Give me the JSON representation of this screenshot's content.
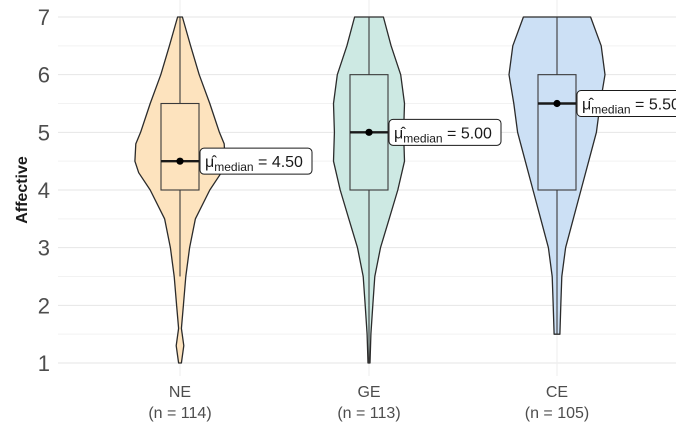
{
  "chart_data": {
    "type": "violin",
    "title": "",
    "xlabel": "",
    "ylabel": "Affective",
    "ylim": [
      1,
      7
    ],
    "yticks": [
      1,
      2,
      3,
      4,
      5,
      6,
      7
    ],
    "grid": true,
    "legend": "none",
    "groups": [
      {
        "name": "NE",
        "n_label": "(n = 114)",
        "fill": "#FDE3BE",
        "median": 4.5,
        "q1": 4.0,
        "q3": 5.5,
        "whisker_low": 2.5,
        "whisker_high": 7.0,
        "annotation": {
          "symbol": "μ̂",
          "subscript": "median",
          "value": "4.50"
        },
        "density": [
          [
            1.0,
            0.03
          ],
          [
            1.3,
            0.08
          ],
          [
            1.6,
            0.03
          ],
          [
            2.0,
            0.07
          ],
          [
            2.5,
            0.12
          ],
          [
            3.0,
            0.2
          ],
          [
            3.5,
            0.32
          ],
          [
            4.0,
            0.62
          ],
          [
            4.3,
            0.86
          ],
          [
            4.5,
            0.94
          ],
          [
            4.8,
            0.92
          ],
          [
            5.0,
            0.82
          ],
          [
            5.5,
            0.62
          ],
          [
            6.0,
            0.4
          ],
          [
            6.5,
            0.22
          ],
          [
            7.0,
            0.05
          ]
        ]
      },
      {
        "name": "GE",
        "n_label": "(n = 113)",
        "fill": "#CDE9E3",
        "median": 5.0,
        "q1": 4.0,
        "q3": 6.0,
        "whisker_low": 1.0,
        "whisker_high": 7.0,
        "annotation": {
          "symbol": "μ̂",
          "subscript": "median",
          "value": "5.00"
        },
        "density": [
          [
            1.0,
            0.02
          ],
          [
            1.5,
            0.04
          ],
          [
            2.0,
            0.08
          ],
          [
            2.5,
            0.12
          ],
          [
            3.0,
            0.24
          ],
          [
            3.5,
            0.42
          ],
          [
            4.0,
            0.6
          ],
          [
            4.5,
            0.74
          ],
          [
            5.0,
            0.72
          ],
          [
            5.5,
            0.74
          ],
          [
            6.0,
            0.66
          ],
          [
            6.5,
            0.46
          ],
          [
            7.0,
            0.3
          ]
        ]
      },
      {
        "name": "CE",
        "n_label": "(n = 105)",
        "fill": "#CCE0F5",
        "median": 5.5,
        "q1": 4.0,
        "q3": 6.0,
        "whisker_low": 1.5,
        "whisker_high": 7.0,
        "annotation": {
          "symbol": "μ̂",
          "subscript": "median",
          "value": "5.50"
        },
        "density": [
          [
            1.5,
            0.06
          ],
          [
            2.0,
            0.08
          ],
          [
            2.5,
            0.1
          ],
          [
            3.0,
            0.18
          ],
          [
            3.5,
            0.34
          ],
          [
            4.0,
            0.5
          ],
          [
            4.5,
            0.66
          ],
          [
            5.0,
            0.82
          ],
          [
            5.5,
            0.9
          ],
          [
            6.0,
            1.0
          ],
          [
            6.5,
            0.92
          ],
          [
            7.0,
            0.7
          ]
        ]
      }
    ]
  }
}
